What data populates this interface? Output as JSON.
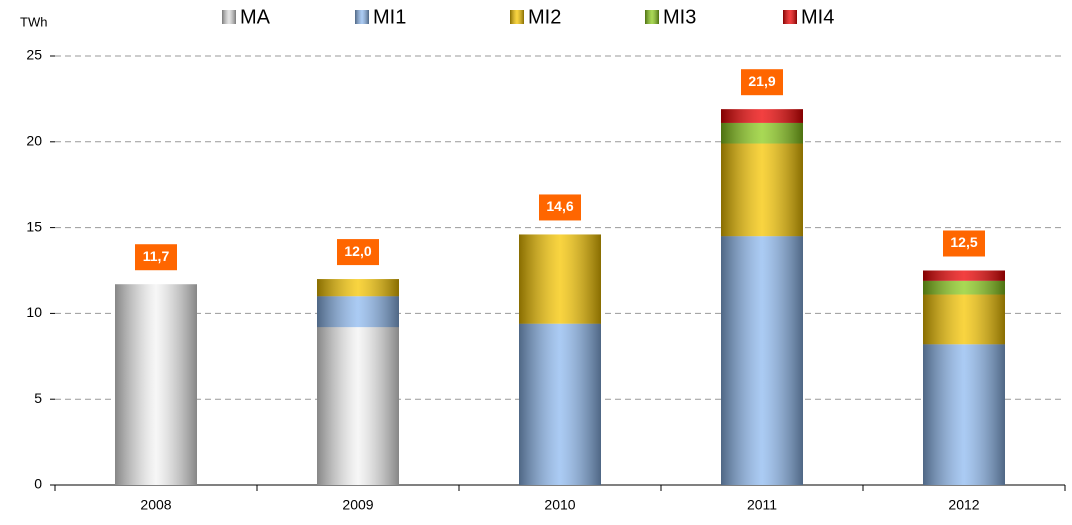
{
  "chart_data": {
    "type": "stacked_bar",
    "y_label": "TWh",
    "categories": [
      "2008",
      "2009",
      "2010",
      "2011",
      "2012"
    ],
    "series": [
      {
        "name": "MA",
        "color": "#c8c8c8",
        "values": [
          11.7,
          9.2,
          0,
          0,
          0
        ]
      },
      {
        "name": "MI1",
        "color": "#8fbaf0",
        "values": [
          0,
          1.8,
          9.4,
          14.5,
          8.2
        ]
      },
      {
        "name": "MI2",
        "color": "#f7c600",
        "values": [
          0,
          1.0,
          5.2,
          5.4,
          2.9
        ]
      },
      {
        "name": "MI3",
        "color": "#8ccc1c",
        "values": [
          0,
          0,
          0,
          1.2,
          0.8
        ]
      },
      {
        "name": "MI4",
        "color": "#ee0000",
        "values": [
          0,
          0,
          0,
          0.8,
          0.6
        ]
      }
    ],
    "totals": [
      11.7,
      12.0,
      14.6,
      21.9,
      12.5
    ],
    "total_labels": [
      "11,7",
      "12,0",
      "14,6",
      "21,9",
      "12,5"
    ],
    "total_label_color": "#ff6600",
    "ylim": [
      0,
      25
    ],
    "yticks": [
      0,
      5,
      10,
      15,
      20,
      25
    ],
    "grid": true
  }
}
